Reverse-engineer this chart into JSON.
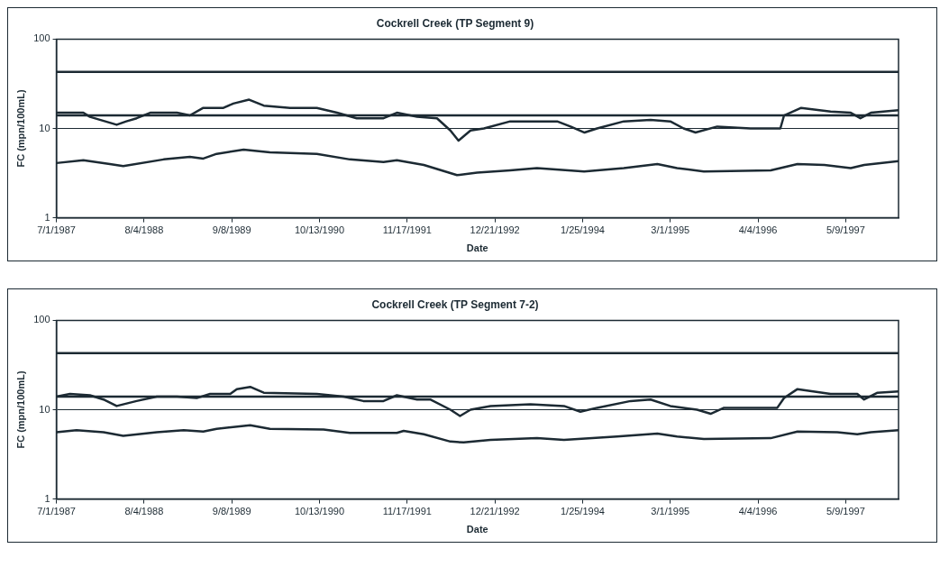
{
  "chart_data": [
    {
      "type": "line",
      "title": "Cockrell Creek (TP Segment 9)",
      "xlabel": "Date",
      "ylabel": "FC (mpn/100mL)",
      "log": "y",
      "grid": "y",
      "legend": false,
      "marker": "none",
      "line_style": "solid",
      "xlim": [
        "1987-07-01",
        "1998-01-05"
      ],
      "xticks": [
        {
          "value": "1987-07-01",
          "label": "7/1/1987"
        },
        {
          "value": "1988-08-04",
          "label": "8/4/1988"
        },
        {
          "value": "1989-09-08",
          "label": "9/8/1989"
        },
        {
          "value": "1990-10-13",
          "label": "10/13/1990"
        },
        {
          "value": "1991-11-17",
          "label": "11/17/1991"
        },
        {
          "value": "1992-12-21",
          "label": "12/21/1992"
        },
        {
          "value": "1994-01-25",
          "label": "1/25/1994"
        },
        {
          "value": "1995-03-01",
          "label": "3/1/1995"
        },
        {
          "value": "1996-04-04",
          "label": "4/4/1996"
        },
        {
          "value": "1997-05-09",
          "label": "5/9/1997"
        }
      ],
      "ylim": [
        1,
        100
      ],
      "yticks": [
        1,
        10,
        100
      ],
      "ref_lines": [
        {
          "axis": "y",
          "value": 43,
          "color": "#1c2a33"
        },
        {
          "axis": "y",
          "value": 14,
          "color": "#1c2a33"
        }
      ],
      "series": [
        {
          "color": "#1c2a33",
          "x": [
            "1987-07-01",
            "1987-11-01",
            "1987-12-01",
            "1988-04-01",
            "1988-05-15",
            "1988-07-01",
            "1988-09-01",
            "1989-01-01",
            "1989-03-01",
            "1989-05-01",
            "1989-08-01",
            "1989-09-15",
            "1989-11-26",
            "1990-02-01",
            "1990-06-01",
            "1990-10-01",
            "1991-01-01",
            "1991-04-01",
            "1991-08-01",
            "1991-10-01",
            "1992-01-01",
            "1992-04-01",
            "1992-06-01",
            "1992-07-08",
            "1992-09-01",
            "1992-11-01",
            "1993-03-01",
            "1993-06-01",
            "1993-10-01",
            "1993-12-01",
            "1994-02-03",
            "1994-04-01",
            "1994-08-01",
            "1994-12-01",
            "1995-03-01",
            "1995-05-01",
            "1995-06-24",
            "1995-10-01",
            "1996-03-01",
            "1996-07-15",
            "1996-08-01",
            "1996-10-18",
            "1997-03-01",
            "1997-06-01",
            "1997-07-15",
            "1997-09-01",
            "1998-01-05"
          ],
          "values": [
            15,
            15,
            13.5,
            11,
            12,
            13,
            15,
            15,
            14,
            17,
            17,
            19,
            21,
            18,
            17,
            17,
            15,
            13,
            13,
            15,
            13.5,
            13,
            9.5,
            7.3,
            9.5,
            10,
            12,
            12,
            12,
            10.5,
            9,
            10,
            12,
            12.5,
            12,
            10,
            9,
            10.5,
            10,
            10,
            14,
            17,
            15.5,
            15,
            13,
            15,
            16
          ]
        },
        {
          "color": "#1c2a33",
          "x": [
            "1987-07-01",
            "1987-11-01",
            "1988-03-01",
            "1988-05-01",
            "1988-11-01",
            "1989-03-01",
            "1989-05-01",
            "1989-07-01",
            "1989-11-01",
            "1990-03-01",
            "1990-10-01",
            "1991-03-01",
            "1991-08-01",
            "1991-10-01",
            "1992-02-01",
            "1992-07-01",
            "1992-10-01",
            "1993-03-01",
            "1993-07-01",
            "1994-02-01",
            "1994-08-01",
            "1995-01-01",
            "1995-04-01",
            "1995-08-01",
            "1996-06-01",
            "1996-10-01",
            "1997-02-01",
            "1997-06-01",
            "1997-08-01",
            "1998-01-05"
          ],
          "values": [
            4.1,
            4.4,
            4.0,
            3.8,
            4.5,
            4.8,
            4.6,
            5.2,
            5.8,
            5.4,
            5.2,
            4.5,
            4.2,
            4.4,
            3.9,
            3.0,
            3.2,
            3.4,
            3.6,
            3.3,
            3.6,
            4.0,
            3.6,
            3.3,
            3.4,
            4.0,
            3.9,
            3.6,
            3.9,
            4.3
          ]
        }
      ]
    },
    {
      "type": "line",
      "title": "Cockrell Creek (TP Segment 7-2)",
      "xlabel": "Date",
      "ylabel": "FC (mpn/100mL)",
      "log": "y",
      "grid": "y",
      "legend": false,
      "marker": "none",
      "line_style": "solid",
      "xlim": [
        "1987-07-01",
        "1998-01-05"
      ],
      "xticks": [
        {
          "value": "1987-07-01",
          "label": "7/1/1987"
        },
        {
          "value": "1988-08-04",
          "label": "8/4/1988"
        },
        {
          "value": "1989-09-08",
          "label": "9/8/1989"
        },
        {
          "value": "1990-10-13",
          "label": "10/13/1990"
        },
        {
          "value": "1991-11-17",
          "label": "11/17/1991"
        },
        {
          "value": "1992-12-21",
          "label": "12/21/1992"
        },
        {
          "value": "1994-01-25",
          "label": "1/25/1994"
        },
        {
          "value": "1995-03-01",
          "label": "3/1/1995"
        },
        {
          "value": "1996-04-04",
          "label": "4/4/1996"
        },
        {
          "value": "1997-05-09",
          "label": "5/9/1997"
        }
      ],
      "ylim": [
        1,
        100
      ],
      "yticks": [
        1,
        10,
        100
      ],
      "ref_lines": [
        {
          "axis": "y",
          "value": 43,
          "color": "#1c2a33"
        },
        {
          "axis": "y",
          "value": 14,
          "color": "#1c2a33"
        }
      ],
      "series": [
        {
          "color": "#1c2a33",
          "x": [
            "1987-07-01",
            "1987-09-01",
            "1987-12-01",
            "1988-02-01",
            "1988-04-01",
            "1988-07-01",
            "1988-10-01",
            "1989-01-01",
            "1989-04-01",
            "1989-06-01",
            "1989-09-01",
            "1989-10-01",
            "1989-12-01",
            "1990-02-01",
            "1990-10-01",
            "1991-02-01",
            "1991-05-01",
            "1991-08-01",
            "1991-10-01",
            "1992-01-01",
            "1992-03-01",
            "1992-06-01",
            "1992-07-15",
            "1992-09-01",
            "1992-12-01",
            "1993-06-01",
            "1993-11-01",
            "1994-01-15",
            "1994-04-01",
            "1994-09-01",
            "1994-12-01",
            "1995-03-01",
            "1995-07-01",
            "1995-09-01",
            "1995-11-01",
            "1996-07-01",
            "1996-08-01",
            "1996-10-01",
            "1997-03-01",
            "1997-07-01",
            "1997-08-01",
            "1997-10-01",
            "1998-01-05"
          ],
          "values": [
            14,
            15,
            14.5,
            13,
            11,
            12.5,
            14,
            14,
            13.5,
            15,
            15,
            17,
            18,
            15.5,
            15,
            14,
            12.5,
            12.5,
            14.5,
            13,
            13,
            10,
            8.5,
            10,
            11,
            11.5,
            11,
            9.5,
            10.5,
            12.5,
            13,
            11,
            10,
            9,
            10.5,
            10.5,
            13.5,
            17,
            15,
            15,
            13,
            15.5,
            16
          ]
        },
        {
          "color": "#1c2a33",
          "x": [
            "1987-07-01",
            "1987-10-01",
            "1988-02-01",
            "1988-05-01",
            "1988-10-01",
            "1989-02-01",
            "1989-05-01",
            "1989-07-01",
            "1989-12-01",
            "1990-03-01",
            "1990-11-01",
            "1991-03-01",
            "1991-10-01",
            "1991-11-01",
            "1992-02-01",
            "1992-06-01",
            "1992-08-01",
            "1992-12-01",
            "1993-07-01",
            "1993-11-01",
            "1994-07-01",
            "1995-01-01",
            "1995-04-01",
            "1995-08-01",
            "1996-06-01",
            "1996-10-01",
            "1997-04-01",
            "1997-07-01",
            "1997-09-01",
            "1998-01-05"
          ],
          "values": [
            5.6,
            5.9,
            5.6,
            5.1,
            5.6,
            5.9,
            5.7,
            6.1,
            6.7,
            6.1,
            6.0,
            5.5,
            5.5,
            5.8,
            5.3,
            4.4,
            4.3,
            4.6,
            4.8,
            4.6,
            5.0,
            5.4,
            5.0,
            4.7,
            4.8,
            5.7,
            5.6,
            5.3,
            5.6,
            5.9
          ]
        }
      ]
    }
  ]
}
